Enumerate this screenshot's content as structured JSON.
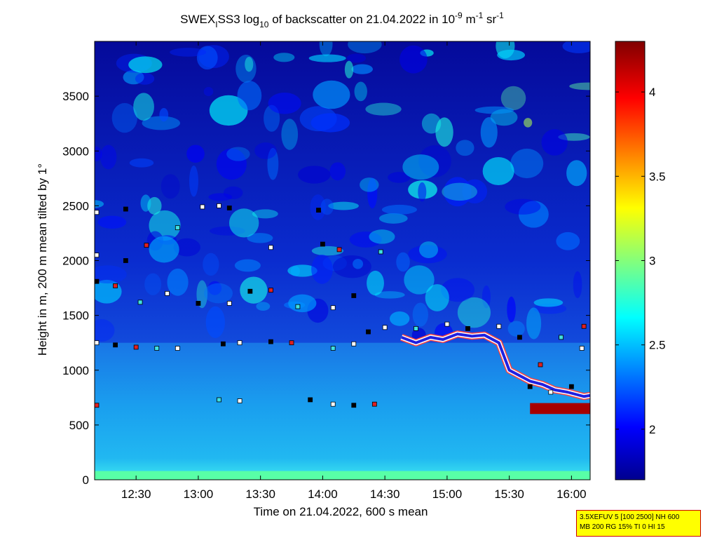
{
  "chart_data": {
    "type": "heatmap",
    "title_parts": {
      "a": "SWEX",
      "sub_i": "I",
      "b": "SS3 log",
      "sub_10": "10",
      "c": " of backscatter on 21.04.2022 in 10",
      "sup_minus9": "-9",
      "d": " m",
      "sup_minus1a": "-1",
      "e": " sr",
      "sup_minus1b": "-1"
    },
    "xlabel": "Time on 21.04.2022, 600 s mean",
    "ylabel": "Height in m, 200 m mean tilted by 1°",
    "x_ticks": [
      "12:30",
      "13:00",
      "13:30",
      "14:00",
      "14:30",
      "15:00",
      "15:30",
      "16:00"
    ],
    "x_tick_minutes": [
      750,
      780,
      810,
      840,
      870,
      900,
      930,
      960
    ],
    "xlim_minutes": [
      730,
      969
    ],
    "y_ticks": [
      "0",
      "500",
      "1000",
      "1500",
      "2000",
      "2500",
      "3000",
      "3500"
    ],
    "y_tick_values": [
      0,
      500,
      1000,
      1500,
      2000,
      2500,
      3000,
      3500
    ],
    "ylim": [
      0,
      4000
    ],
    "colorbar": {
      "ticks": [
        "2",
        "2.5",
        "3",
        "3.5",
        "4"
      ],
      "tick_values": [
        2,
        2.5,
        3,
        3.5,
        4
      ],
      "range": [
        1.7,
        4.3
      ],
      "colormap": "jet"
    },
    "layers": [
      {
        "name": "surface",
        "x_start": 730,
        "x_end": 969,
        "y_bottom": 0,
        "y_top": 80,
        "value": 2.9
      },
      {
        "name": "boundary-layer",
        "x_start": 730,
        "x_end": 969,
        "y_bottom": 80,
        "y_top": 1250,
        "value": 2.55
      },
      {
        "name": "low-cloud",
        "x_start": 940,
        "x_end": 969,
        "y_bottom": 600,
        "y_top": 700,
        "value": 4.2
      }
    ],
    "cloud_layer_line": {
      "x_minutes": [
        878,
        885,
        892,
        898,
        905,
        912,
        918,
        925,
        930,
        935,
        940,
        946,
        952,
        958,
        962,
        966,
        969
      ],
      "y_heights": [
        1300,
        1250,
        1300,
        1280,
        1330,
        1310,
        1320,
        1250,
        1000,
        950,
        900,
        870,
        820,
        800,
        780,
        760,
        770
      ]
    },
    "series_cloud_base": [
      {
        "x": 731,
        "y": 1250
      },
      {
        "x": 740,
        "y": 1230
      },
      {
        "x": 750,
        "y": 1210
      },
      {
        "x": 760,
        "y": 1200
      },
      {
        "x": 770,
        "y": 1200
      },
      {
        "x": 792,
        "y": 1240
      },
      {
        "x": 800,
        "y": 1250
      },
      {
        "x": 815,
        "y": 1260
      },
      {
        "x": 825,
        "y": 1250
      },
      {
        "x": 845,
        "y": 1200
      },
      {
        "x": 855,
        "y": 1240
      },
      {
        "x": 862,
        "y": 1350
      },
      {
        "x": 870,
        "y": 1390
      },
      {
        "x": 731,
        "y": 1810
      },
      {
        "x": 740,
        "y": 1770
      },
      {
        "x": 752,
        "y": 1620
      },
      {
        "x": 765,
        "y": 1700
      },
      {
        "x": 780,
        "y": 1610
      },
      {
        "x": 795,
        "y": 1610
      },
      {
        "x": 805,
        "y": 1720
      },
      {
        "x": 815,
        "y": 1730
      },
      {
        "x": 828,
        "y": 1580
      },
      {
        "x": 845,
        "y": 1570
      },
      {
        "x": 855,
        "y": 1680
      },
      {
        "x": 731,
        "y": 2050
      },
      {
        "x": 745,
        "y": 2000
      },
      {
        "x": 755,
        "y": 2140
      },
      {
        "x": 770,
        "y": 2300
      },
      {
        "x": 782,
        "y": 2490
      },
      {
        "x": 795,
        "y": 2480
      },
      {
        "x": 815,
        "y": 2120
      },
      {
        "x": 840,
        "y": 2150
      },
      {
        "x": 848,
        "y": 2100
      },
      {
        "x": 868,
        "y": 2080
      },
      {
        "x": 731,
        "y": 2440
      },
      {
        "x": 745,
        "y": 2470
      },
      {
        "x": 790,
        "y": 2500
      },
      {
        "x": 838,
        "y": 2460
      },
      {
        "x": 731,
        "y": 680
      },
      {
        "x": 790,
        "y": 730
      },
      {
        "x": 800,
        "y": 720
      },
      {
        "x": 834,
        "y": 730
      },
      {
        "x": 845,
        "y": 690
      },
      {
        "x": 855,
        "y": 680
      },
      {
        "x": 865,
        "y": 690
      },
      {
        "x": 885,
        "y": 1380
      },
      {
        "x": 900,
        "y": 1420
      },
      {
        "x": 910,
        "y": 1380
      },
      {
        "x": 925,
        "y": 1400
      },
      {
        "x": 935,
        "y": 1300
      },
      {
        "x": 945,
        "y": 1050
      },
      {
        "x": 955,
        "y": 1300
      },
      {
        "x": 965,
        "y": 1200
      },
      {
        "x": 940,
        "y": 850
      },
      {
        "x": 950,
        "y": 800
      },
      {
        "x": 960,
        "y": 850
      },
      {
        "x": 966,
        "y": 1400
      }
    ]
  },
  "info_box": {
    "line1": "3.5XEFUV 5 [100 2500] NH 600",
    "line2": "MB 200 RG 15% TI 0 HI 15"
  }
}
